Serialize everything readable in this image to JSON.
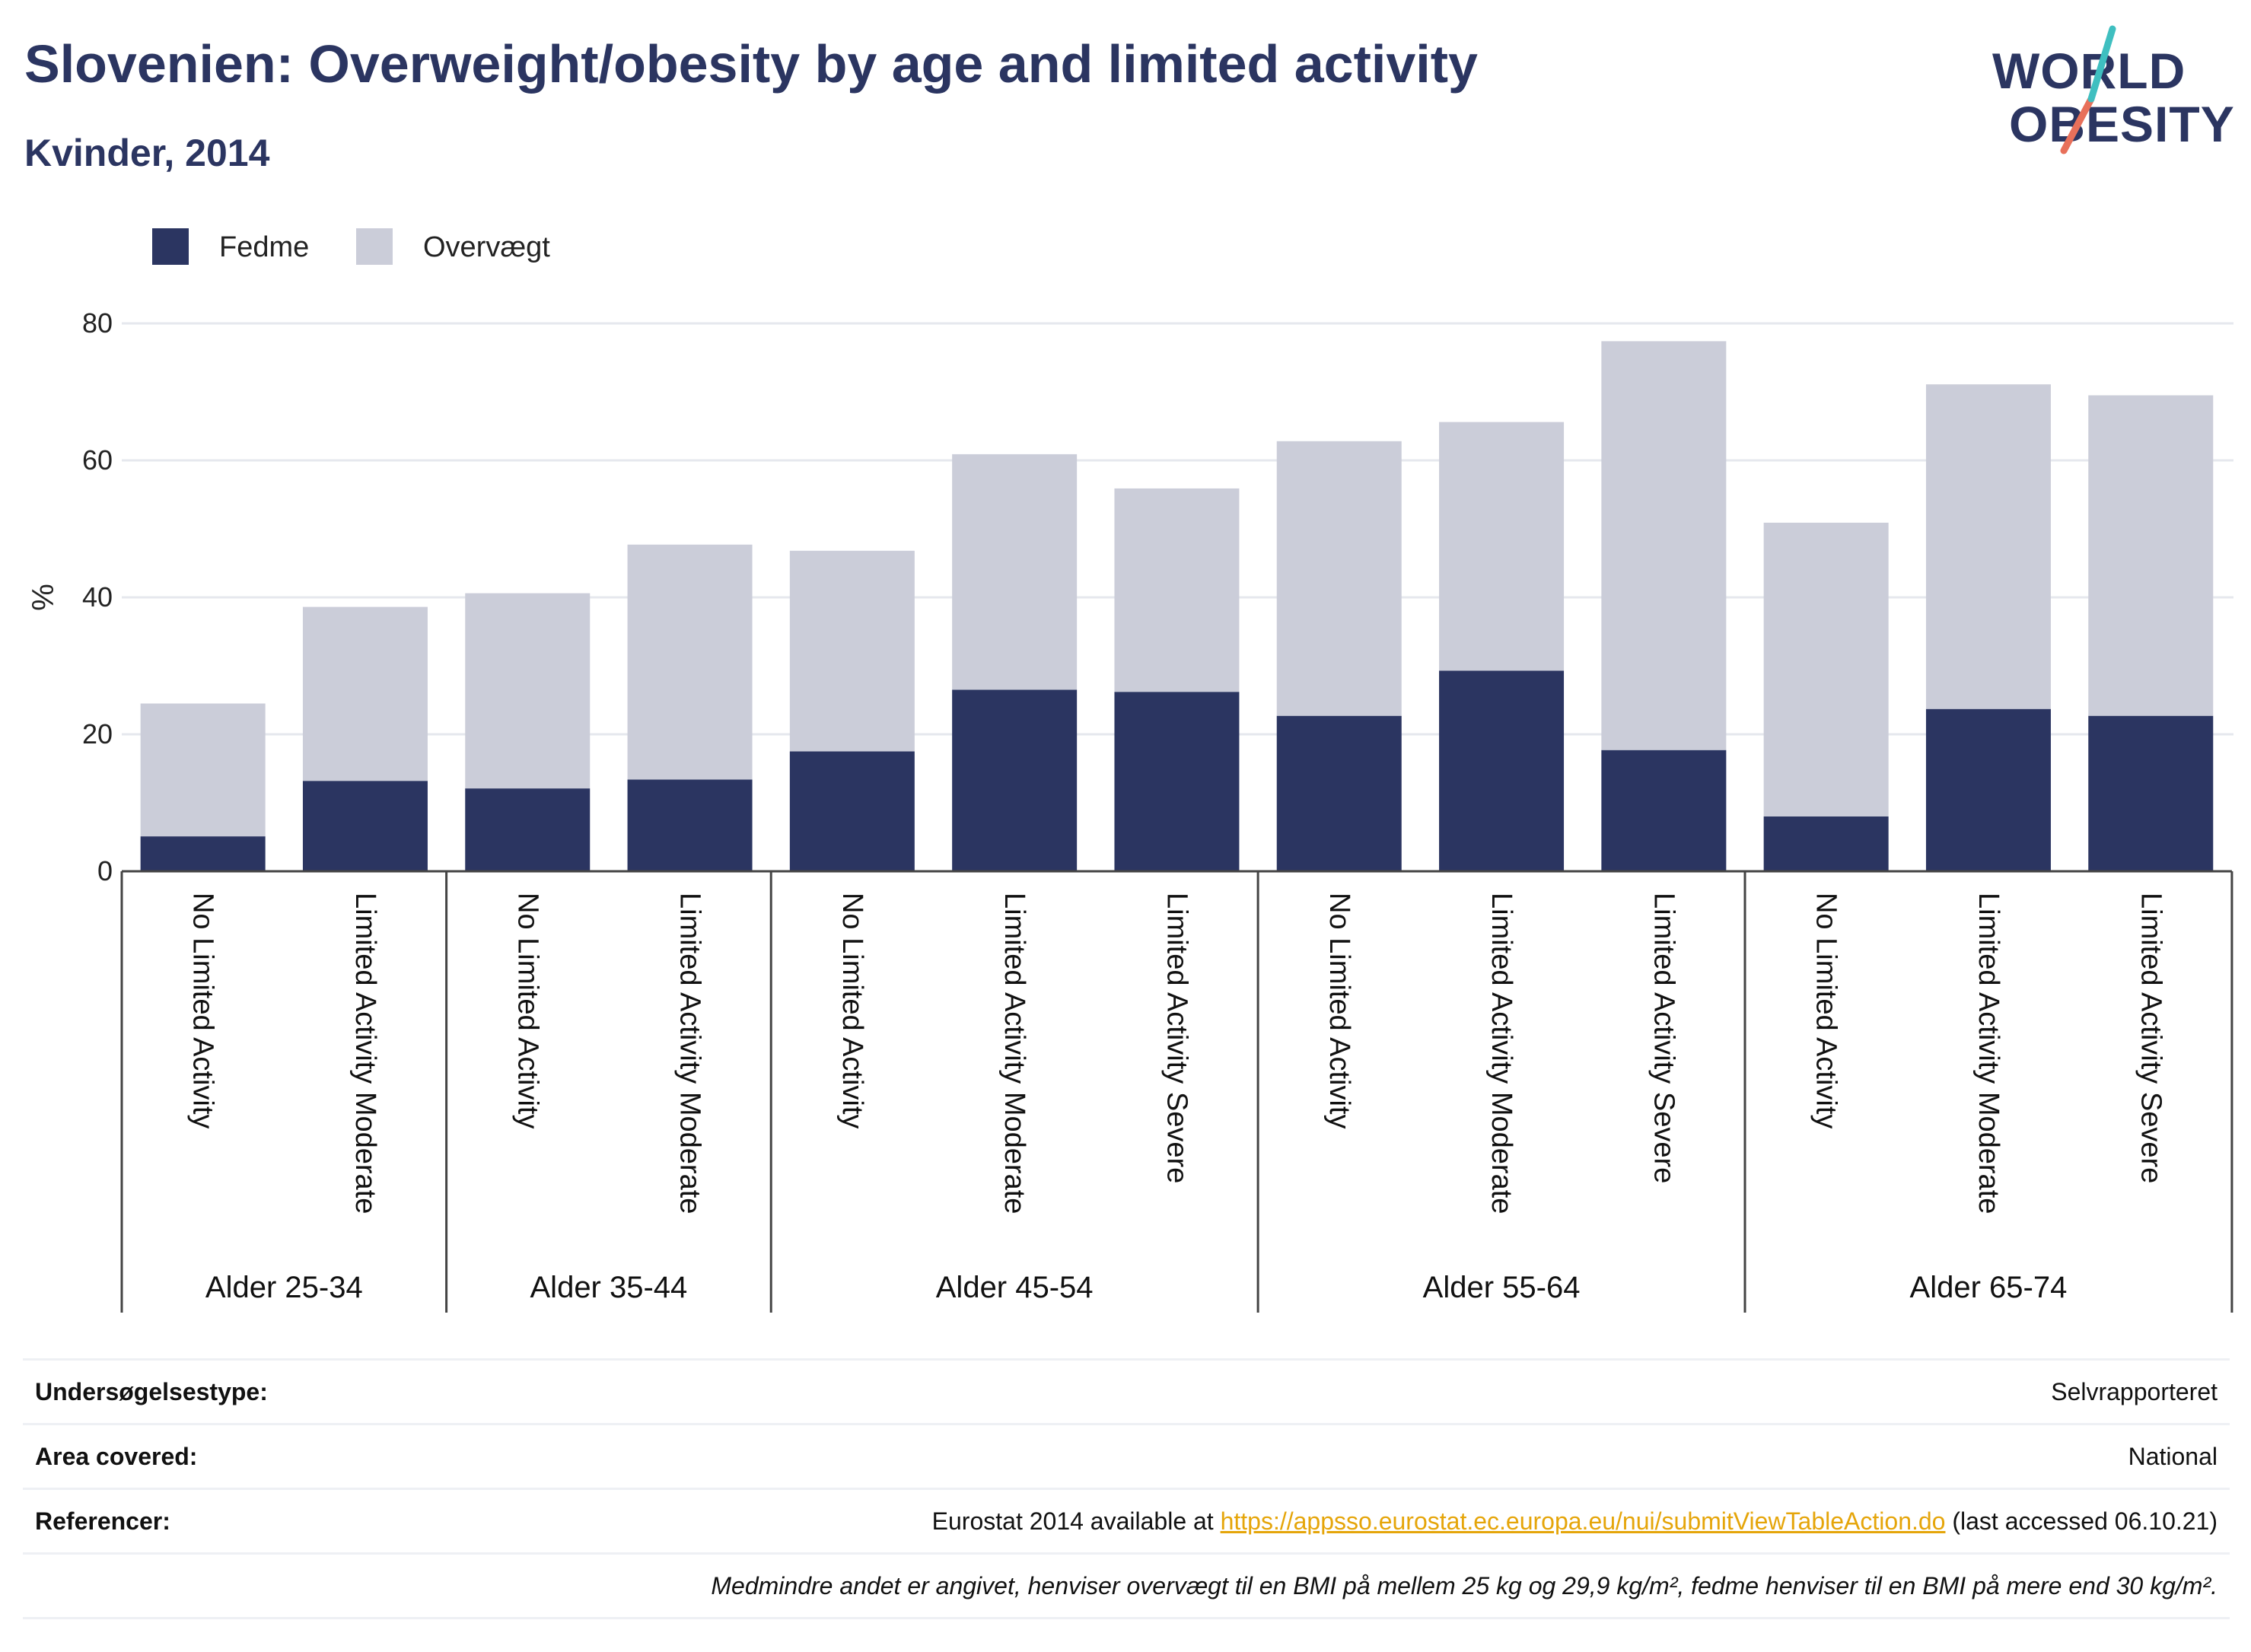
{
  "header": {
    "title": "Slovenien: Overweight/obesity by age and limited activity",
    "subtitle": "Kvinder, 2014"
  },
  "logo": {
    "line1": "WORLD",
    "line2": "OBESITY",
    "colors": {
      "navy": "#2b3561",
      "teal": "#3fbfc0",
      "coral": "#e8705a"
    }
  },
  "chart_data": {
    "type": "bar",
    "stacked": true,
    "ylabel": "%",
    "ylim": [
      0,
      80
    ],
    "yticks": [
      0,
      20,
      40,
      60,
      80
    ],
    "grid": true,
    "legend_position": "top-left",
    "groups": [
      {
        "label": "Alder 25-34",
        "categories": [
          "No Limited Activity",
          "Limited Activity Moderate"
        ]
      },
      {
        "label": "Alder 35-44",
        "categories": [
          "No Limited Activity",
          "Limited Activity Moderate"
        ]
      },
      {
        "label": "Alder 45-54",
        "categories": [
          "No Limited Activity",
          "Limited Activity Moderate",
          "Limited Activity Severe"
        ]
      },
      {
        "label": "Alder 55-64",
        "categories": [
          "No Limited Activity",
          "Limited Activity Moderate",
          "Limited Activity Severe"
        ]
      },
      {
        "label": "Alder 65-74",
        "categories": [
          "No Limited Activity",
          "Limited Activity Moderate",
          "Limited Activity Severe"
        ]
      }
    ],
    "series": [
      {
        "name": "Fedme",
        "color": "#2b3561",
        "values": [
          5.1,
          13.2,
          12.1,
          13.4,
          17.5,
          26.5,
          26.2,
          22.7,
          29.3,
          17.7,
          8.0,
          23.7,
          22.7
        ]
      },
      {
        "name": "Overvægt",
        "color": "#cbcdd9",
        "values": [
          19.4,
          25.4,
          28.5,
          34.3,
          29.3,
          34.4,
          29.7,
          40.1,
          36.3,
          59.7,
          42.9,
          47.4,
          46.8
        ]
      }
    ]
  },
  "meta": {
    "survey_label": "Undersøgelsestype:",
    "survey_value": "Selvrapporteret",
    "area_label": "Area covered:",
    "area_value": "National",
    "ref_label": "Referencer:",
    "ref_prefix": "Eurostat 2014 available at ",
    "ref_link": "https://appsso.eurostat.ec.europa.eu/nui/submitViewTableAction.do",
    "ref_suffix": " (last accessed 06.10.21)",
    "note": "Medmindre andet er angivet, henviser overvægt til en BMI på mellem 25 kg og 29,9 kg/m², fedme henviser til en BMI på mere end 30 kg/m²."
  }
}
